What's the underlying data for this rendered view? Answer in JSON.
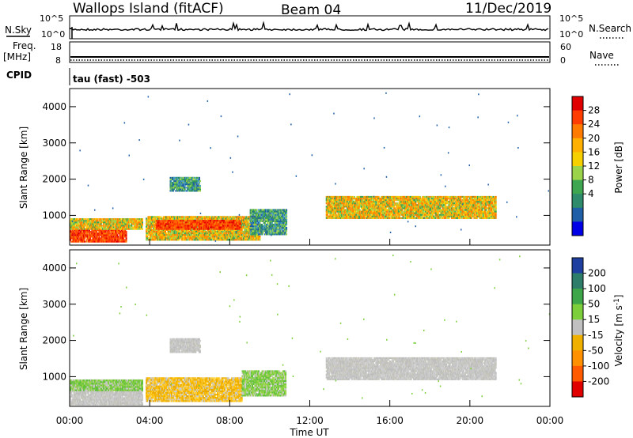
{
  "header": {
    "station": "Wallops Island (fitACF)",
    "beam": "Beam 04",
    "date": "11/Dec/2019"
  },
  "top_panels": {
    "nsky_label": "N.Sky",
    "nsearch_label": "N.Search",
    "nsky_ticks": [
      "10^5",
      "10^0"
    ],
    "nsearch_ticks": [
      "10^5",
      "10^0"
    ],
    "freq_label": "Freq.",
    "freq_unit": "[MHz]",
    "freq_ticks": [
      "18",
      "8"
    ],
    "nave_label": "Nave",
    "nave_ticks": [
      "60",
      "0"
    ],
    "cpid_label": "CPID",
    "cpid_value": "tau (fast) -503"
  },
  "chart_data": [
    {
      "type": "heatmap",
      "name": "power-panel",
      "ylabel": "Slant Range [km]",
      "xlabel": "",
      "x_ticks": [
        "00:00",
        "04:00",
        "08:00",
        "12:00",
        "16:00",
        "20:00",
        "00:00"
      ],
      "y_ticks": [
        "1000",
        "2000",
        "3000",
        "4000"
      ],
      "ylim": [
        180,
        4500
      ],
      "xlim_hours": [
        0,
        24
      ],
      "colorbar": {
        "label": "Power [dB]",
        "ticks": [
          "28",
          "24",
          "20",
          "16",
          "12",
          "8",
          "4"
        ],
        "colors": [
          "#e00000",
          "#ff3d00",
          "#ff7b00",
          "#ffb000",
          "#f7d000",
          "#9bd44a",
          "#3ea650",
          "#2e8b6b",
          "#1f5fa8",
          "#0000e6"
        ]
      },
      "regions": [
        {
          "t0": 0.0,
          "t1": 2.8,
          "r0": 300,
          "r1": 650,
          "level": "high"
        },
        {
          "t0": 0.0,
          "t1": 3.6,
          "r0": 650,
          "r1": 950,
          "level": "mid"
        },
        {
          "t0": 3.8,
          "t1": 9.5,
          "r0": 350,
          "r1": 1000,
          "level": "mid"
        },
        {
          "t0": 4.3,
          "t1": 8.5,
          "r0": 650,
          "r1": 900,
          "level": "high"
        },
        {
          "t0": 5.0,
          "t1": 6.5,
          "r0": 1700,
          "r1": 2100,
          "level": "low"
        },
        {
          "t0": 9.0,
          "t1": 10.8,
          "r0": 500,
          "r1": 1200,
          "level": "low"
        },
        {
          "t0": 12.8,
          "t1": 21.3,
          "r0": 950,
          "r1": 1550,
          "level": "mid"
        }
      ]
    },
    {
      "type": "heatmap",
      "name": "velocity-panel",
      "ylabel": "Slant Range [km]",
      "xlabel": "Time UT",
      "x_ticks": [
        "00:00",
        "04:00",
        "08:00",
        "12:00",
        "16:00",
        "20:00",
        "00:00"
      ],
      "y_ticks": [
        "1000",
        "2000",
        "3000",
        "4000"
      ],
      "ylim": [
        180,
        4500
      ],
      "xlim_hours": [
        0,
        24
      ],
      "colorbar": {
        "label": "Velocity [m s-1]",
        "label_main": "Velocity [m s",
        "label_sup": "-1",
        "label_end": "]",
        "ticks": [
          "200",
          "100",
          "50",
          "15",
          "-15",
          "-50",
          "-100",
          "-200"
        ],
        "colors": [
          "#1f3fa0",
          "#2e7d6a",
          "#3ca648",
          "#7ccf3a",
          "#c0c0c0",
          "#f0b000",
          "#ff9000",
          "#ff5a00",
          "#e00000"
        ]
      },
      "regions": [
        {
          "t0": 0.0,
          "t1": 3.6,
          "r0": 250,
          "r1": 950,
          "level": "gray"
        },
        {
          "t0": 0.0,
          "t1": 3.6,
          "r0": 650,
          "r1": 950,
          "level": "green"
        },
        {
          "t0": 3.8,
          "t1": 8.6,
          "r0": 350,
          "r1": 1000,
          "level": "orange"
        },
        {
          "t0": 5.0,
          "t1": 6.5,
          "r0": 1700,
          "r1": 2100,
          "level": "gray"
        },
        {
          "t0": 8.6,
          "t1": 10.8,
          "r0": 500,
          "r1": 1200,
          "level": "green"
        },
        {
          "t0": 12.8,
          "t1": 21.3,
          "r0": 950,
          "r1": 1550,
          "level": "gray"
        }
      ]
    }
  ]
}
